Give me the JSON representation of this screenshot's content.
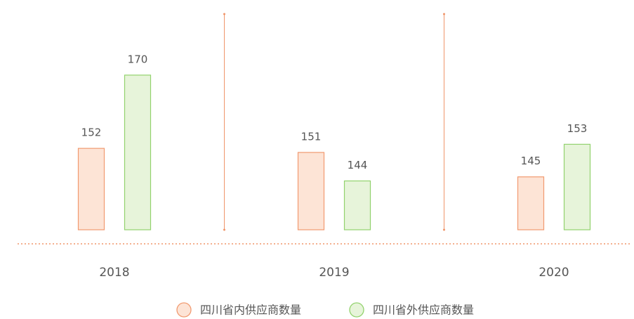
{
  "chart_data": {
    "type": "bar",
    "categories": [
      "2018",
      "2019",
      "2020"
    ],
    "series": [
      {
        "name": "四川省内供应商数量",
        "color": "#fde4d6",
        "stroke": "#f19a70",
        "values": [
          152,
          151,
          145
        ]
      },
      {
        "name": "四川省外供应商数量",
        "color": "#e7f4da",
        "stroke": "#92d26d",
        "values": [
          170,
          144,
          153
        ]
      }
    ],
    "ylim": [
      132,
      185
    ]
  }
}
